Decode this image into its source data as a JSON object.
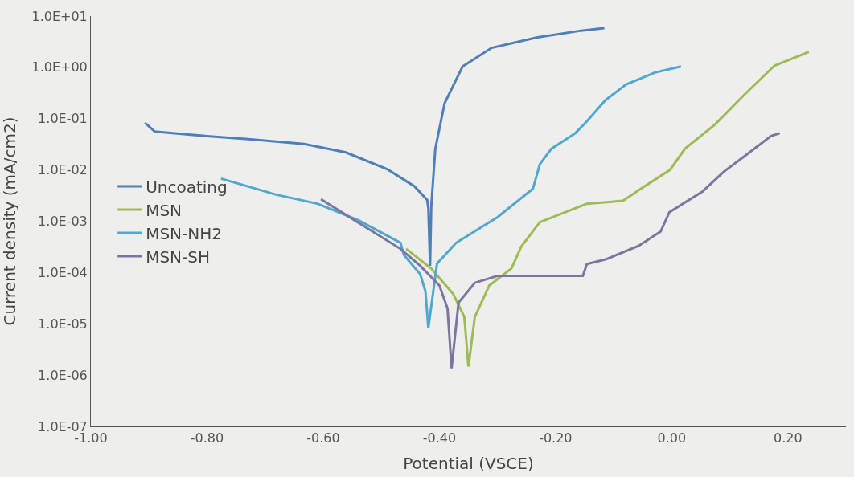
{
  "chart_data": {
    "type": "line",
    "xlabel": "Potential (VSCE)",
    "ylabel": "Current density (mA/cm2)",
    "log": "y",
    "grid": false,
    "legend": "left",
    "marker": "none",
    "line_style": "solid",
    "xlim": [
      -1.0,
      0.3
    ],
    "xticks": [
      {
        "value": -1.0,
        "label": "-1.00"
      },
      {
        "value": -0.8,
        "label": "-0.80"
      },
      {
        "value": -0.6,
        "label": "-0.60"
      },
      {
        "value": -0.4,
        "label": "-0.40"
      },
      {
        "value": -0.2,
        "label": "-0.20"
      },
      {
        "value": 0.0,
        "label": "0.00"
      },
      {
        "value": 0.2,
        "label": "0.20"
      }
    ],
    "ylim": [
      1e-07,
      10
    ],
    "yticks": [
      {
        "value": 1e-07,
        "label": "1.0E-07"
      },
      {
        "value": 1e-06,
        "label": "1.0E-06"
      },
      {
        "value": 1e-05,
        "label": "1.0E-05"
      },
      {
        "value": 0.0001,
        "label": "1.0E-04"
      },
      {
        "value": 0.001,
        "label": "1.0E-03"
      },
      {
        "value": 0.01,
        "label": "1.0E-02"
      },
      {
        "value": 0.1,
        "label": "1.0E-01"
      },
      {
        "value": 1,
        "label": "1.0E+00"
      },
      {
        "value": 10,
        "label": "1.0E+01"
      }
    ],
    "series": [
      {
        "name": "Uncoating",
        "color": "#4f7fb8",
        "x": [
          -0.907,
          -0.89,
          -0.824,
          -0.729,
          -0.633,
          -0.561,
          -0.49,
          -0.443,
          -0.421,
          -0.419,
          -0.416,
          -0.414,
          -0.407,
          -0.391,
          -0.36,
          -0.31,
          -0.233,
          -0.156,
          -0.116
        ],
        "values": [
          0.083,
          0.056,
          0.048,
          0.04,
          0.032,
          0.022,
          0.0104,
          0.0048,
          0.0026,
          0.0018,
          0.000135,
          0.0019,
          0.026,
          0.2,
          1.04,
          2.4,
          3.8,
          5.2,
          5.8
        ]
      },
      {
        "name": "MSN",
        "color": "#9dbb55",
        "x": [
          -0.457,
          -0.414,
          -0.376,
          -0.357,
          -0.35,
          -0.339,
          -0.314,
          -0.276,
          -0.259,
          -0.227,
          -0.146,
          -0.084,
          -0.053,
          -0.003,
          0.023,
          0.074,
          0.126,
          0.177,
          0.236
        ],
        "values": [
          0.00029,
          0.00012,
          3.8e-05,
          1.36e-05,
          1.47e-06,
          1.36e-05,
          5.6e-05,
          0.00012,
          0.00032,
          0.00096,
          0.0022,
          0.0025,
          0.0043,
          0.01,
          0.026,
          0.076,
          0.3,
          1.08,
          2.0
        ]
      },
      {
        "name": "MSN-NH2",
        "color": "#4fa8d0",
        "x": [
          -0.776,
          -0.681,
          -0.61,
          -0.539,
          -0.467,
          -0.461,
          -0.433,
          -0.424,
          -0.419,
          -0.404,
          -0.371,
          -0.3,
          -0.239,
          -0.227,
          -0.207,
          -0.166,
          -0.146,
          -0.114,
          -0.079,
          -0.029,
          0.016
        ],
        "values": [
          0.0068,
          0.0033,
          0.0022,
          0.00104,
          0.00038,
          0.00022,
          9.3e-05,
          4.3e-05,
          8.3e-06,
          0.00015,
          0.00038,
          0.0012,
          0.0043,
          0.013,
          0.026,
          0.052,
          0.089,
          0.23,
          0.46,
          0.79,
          1.04
        ]
      },
      {
        "name": "MSN-SH",
        "color": "#7a76a0",
        "x": [
          -0.604,
          -0.539,
          -0.467,
          -0.433,
          -0.4,
          -0.386,
          -0.379,
          -0.367,
          -0.339,
          -0.3,
          -0.153,
          -0.146,
          -0.114,
          -0.057,
          -0.019,
          -0.004,
          0.053,
          0.09,
          0.124,
          0.171,
          0.186
        ],
        "values": [
          0.0027,
          0.00093,
          0.00029,
          0.000136,
          5.6e-05,
          2e-05,
          1.36e-06,
          2.6e-05,
          6.3e-05,
          8.6e-05,
          8.6e-05,
          0.000147,
          0.00018,
          0.00033,
          0.00063,
          0.0015,
          0.0038,
          0.0093,
          0.018,
          0.046,
          0.052
        ]
      }
    ]
  }
}
